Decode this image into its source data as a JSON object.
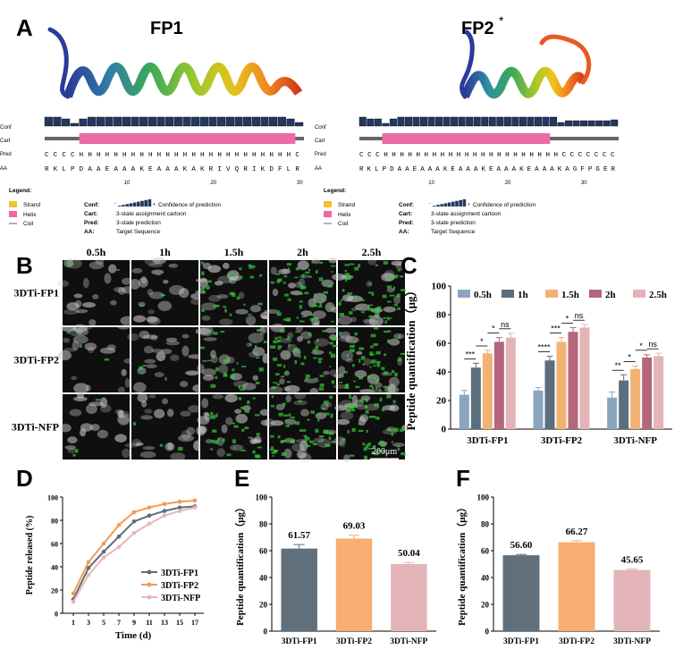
{
  "panels": {
    "A": "A",
    "B": "B",
    "C": "C",
    "D": "D",
    "E": "E",
    "F": "F"
  },
  "panel_a": {
    "fp1_title": "FP1",
    "fp2_title": "FP2",
    "fp2_superscript": "*",
    "row_labels": {
      "conf": "Conf",
      "cart": "Cart",
      "pred": "Pred",
      "aa": "AA"
    },
    "fp1": {
      "pred": "C C C C H H H H H H H H H H H H H H H H H H H H H H H H H C",
      "aa": "R K L P D A A E A A A K E A A A K A K R I V Q R I K D F L R",
      "ticks": [
        "10",
        "20",
        "30"
      ]
    },
    "fp2": {
      "pred": "C C C H H H H H H H H H H H H H H H H H H H H H H C C C C C C C",
      "aa": "R K L P D A A E A A A K E A A A K E A A A K E A A A K A G F P G E R",
      "ticks": [
        "10",
        "20",
        "30"
      ]
    },
    "legend": {
      "title": "Legend:",
      "strand": "Strand",
      "helix": "Helix",
      "coil": "Coil",
      "conf_key": "Conf:",
      "conf_text": "Confidence of prediction",
      "cart_key": "Cart:",
      "cart_text": "3-state assignment cartoon",
      "pred_key": "Pred:",
      "pred_text": "3-state prediction",
      "aa_key": "AA:",
      "aa_text": "Target Sequence",
      "minus": "-",
      "plus": "+"
    },
    "colors": {
      "strand": "#f2c12e",
      "helix": "#ec6aa6",
      "coil": "#666666",
      "conf": "#23385f"
    }
  },
  "panel_b": {
    "times": [
      "0.5h",
      "1h",
      "1.5h",
      "2h",
      "2.5h"
    ],
    "rows": [
      "3DTi-FP1",
      "3DTi-FP2",
      "3DTi-NFP"
    ],
    "scalebar": "200μm"
  },
  "chart_data": [
    {
      "id": "C",
      "type": "bar",
      "categories": [
        "3DTi-FP1",
        "3DTi-FP2",
        "3DTi-NFP"
      ],
      "series": [
        {
          "name": "0.5h",
          "values": [
            24,
            27,
            22
          ],
          "errors": [
            3,
            2,
            4
          ],
          "color": "#8aa6bf"
        },
        {
          "name": "1h",
          "values": [
            43,
            48,
            34
          ],
          "errors": [
            3,
            3,
            4
          ],
          "color": "#5b6e7d"
        },
        {
          "name": "1.5h",
          "values": [
            53,
            61,
            42
          ],
          "errors": [
            2,
            3,
            2
          ],
          "color": "#f2b273"
        },
        {
          "name": "2h",
          "values": [
            61,
            68,
            50
          ],
          "errors": [
            3,
            3,
            2
          ],
          "color": "#b5657c"
        },
        {
          "name": "2.5h",
          "values": [
            64,
            71,
            51
          ],
          "errors": [
            3,
            2,
            2
          ],
          "color": "#e3b3b8"
        }
      ],
      "significance": [
        [
          "***",
          "*",
          "*",
          "ns"
        ],
        [
          "****",
          "***",
          "*",
          "ns"
        ],
        [
          "**",
          "*",
          "*",
          "ns"
        ]
      ],
      "ylabel": "Peptide quantification（μg）",
      "ylim": [
        0,
        100
      ],
      "yticks": [
        0,
        20,
        40,
        60,
        80,
        100
      ],
      "legend_position": "top"
    },
    {
      "id": "D",
      "type": "line",
      "x": [
        1,
        3,
        5,
        7,
        9,
        11,
        13,
        15,
        17
      ],
      "series": [
        {
          "name": "3DTi-FP1",
          "values": [
            12,
            39,
            53,
            66,
            79,
            84,
            88,
            91,
            92
          ],
          "color": "#5e6d79"
        },
        {
          "name": "3DTi-FP2",
          "values": [
            17,
            44,
            60,
            76,
            87,
            91,
            94,
            96,
            97
          ],
          "color": "#f39a55"
        },
        {
          "name": "3DTi-NFP",
          "values": [
            10,
            33,
            48,
            57,
            69,
            77,
            84,
            88,
            91
          ],
          "color": "#e8b6b9"
        }
      ],
      "xlabel": "Time (d)",
      "ylabel": "Peptide released (%)",
      "xticks": [
        1,
        3,
        5,
        7,
        9,
        11,
        13,
        15,
        17
      ],
      "yticks": [
        0,
        20,
        40,
        60,
        80,
        100
      ],
      "ylim": [
        0,
        100
      ],
      "legend_position": "bottom-right"
    },
    {
      "id": "E",
      "type": "bar",
      "categories": [
        "3DTi-FP1",
        "3DTi-FP2",
        "3DTi-NFP"
      ],
      "values": [
        61.57,
        69.03,
        50.04
      ],
      "labels": [
        "61.57",
        "69.03",
        "50.04"
      ],
      "errors": [
        3,
        2.5,
        1.2
      ],
      "colors": [
        "#5f6f7c",
        "#f6ae72",
        "#e3b5b8"
      ],
      "ylabel": "Peptide quantification（μg）",
      "ylim": [
        0,
        100
      ],
      "yticks": [
        0,
        20,
        40,
        60,
        80,
        100
      ]
    },
    {
      "id": "F",
      "type": "bar",
      "categories": [
        "3DTi-FP1",
        "3DTi-FP2",
        "3DTi-NFP"
      ],
      "values": [
        56.6,
        66.27,
        45.65
      ],
      "labels": [
        "56.60",
        "66.27",
        "45.65"
      ],
      "errors": [
        0.6,
        1.2,
        0.8
      ],
      "colors": [
        "#5f6f7c",
        "#f6ae72",
        "#e3b5b8"
      ],
      "ylabel": "Peptide quantification（μg）",
      "ylim": [
        0,
        100
      ],
      "yticks": [
        0,
        20,
        40,
        60,
        80,
        100
      ]
    }
  ]
}
